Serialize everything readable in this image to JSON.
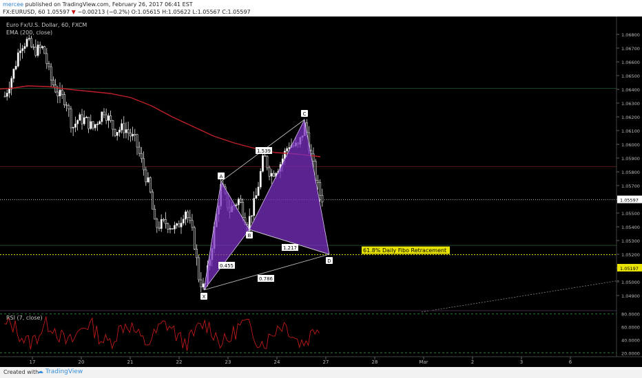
{
  "header": {
    "user": "mercee",
    "published_text": "published on TradingView.com, February 26, 2017 06:41 EST",
    "symbol": "FX:EURUSD, 60",
    "last": "1.05597",
    "arrow": "▼",
    "change": "−0.00213 (−0.2%)",
    "open": "O:1.05615",
    "high": "H:1.05622",
    "low": "L:1.05567",
    "close": "C:1.05597"
  },
  "legend": {
    "title": "Euro Fx/U.S. Dollar, 60, FXCM",
    "ema": "EMA (200, close)"
  },
  "rsi_label": "RSI (7, close)",
  "chart_data": {
    "type": "candlestick",
    "x_labels": [
      "17",
      "20",
      "21",
      "22",
      "23",
      "24",
      "27",
      "28",
      "Mar",
      "2",
      "3",
      "6"
    ],
    "y_ticks": [
      "1.06800",
      "1.06700",
      "1.06600",
      "1.06500",
      "1.06400",
      "1.06300",
      "1.06200",
      "1.06100",
      "1.06000",
      "1.05900",
      "1.05800",
      "1.05700",
      "1.05600",
      "1.05500",
      "1.05400",
      "1.05300",
      "1.05200",
      "1.05100",
      "1.05000",
      "1.04900"
    ],
    "ylim": [
      1.0485,
      1.0688
    ],
    "price_tag": "1.05597",
    "price_tag2": "1.05197",
    "colors": {
      "up": "#ffffff",
      "down": "#ffffff",
      "ema": "#c0202a",
      "pattern": "#7a2fc0",
      "fibo": "#e8e300"
    },
    "pattern": {
      "points": [
        {
          "label": "X",
          "price": 1.0494
        },
        {
          "label": "A",
          "price": 1.0573
        },
        {
          "label": "B",
          "price": 1.0538
        },
        {
          "label": "C",
          "price": 1.0618
        },
        {
          "label": "D",
          "price": 1.052
        }
      ],
      "ratios": [
        "0.455",
        "1.539",
        "1.217",
        "0.786"
      ]
    },
    "fibo_label": "61.8% Daily Fibo Retracement",
    "rsi": {
      "ticks": [
        "80.0000",
        "60.0000",
        "40.0000",
        "20.0000"
      ],
      "ylim": [
        15,
        85
      ]
    }
  },
  "footer": {
    "created": "Created with",
    "brand": "TradingView"
  }
}
